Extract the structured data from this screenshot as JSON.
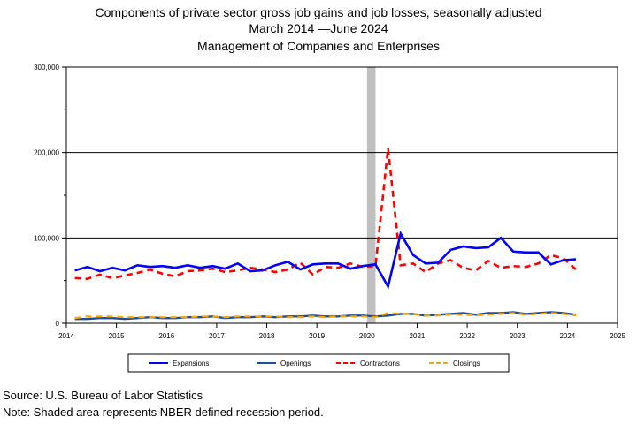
{
  "title": "Components of private sector gross job gains and job losses, seasonally adjusted",
  "subtitle_start": "March 2014",
  "subtitle_end": "June 2024",
  "subtitle2": "Management of Companies and Enterprises",
  "source": "Source: U.S. Bureau of Labor Statistics",
  "note": "Note: Shaded area represents NBER defined recession period.",
  "colors": {
    "expansions": "#0000ff",
    "openings": "#1f4e99",
    "contractions": "#ff0000",
    "closings": "#ffa500",
    "recession": "#c0c0c0"
  },
  "chart_data": {
    "type": "line",
    "xlim": [
      2014,
      2025
    ],
    "ylim": [
      0,
      300000
    ],
    "x_ticks": [
      "2014",
      "2015",
      "2016",
      "2017",
      "2018",
      "2019",
      "2020",
      "2021",
      "2022",
      "2023",
      "2024",
      "2025"
    ],
    "y_ticks": [
      "0",
      "100,000",
      "200,000",
      "300,000"
    ],
    "recession": [
      2020.0,
      2020.17
    ],
    "legend_position": "bottom",
    "x": [
      2014.17,
      2014.42,
      2014.67,
      2014.92,
      2015.17,
      2015.42,
      2015.67,
      2015.92,
      2016.17,
      2016.42,
      2016.67,
      2016.92,
      2017.17,
      2017.42,
      2017.67,
      2017.92,
      2018.17,
      2018.42,
      2018.67,
      2018.92,
      2019.17,
      2019.42,
      2019.67,
      2019.92,
      2020.17,
      2020.42,
      2020.67,
      2020.92,
      2021.17,
      2021.42,
      2021.67,
      2021.92,
      2022.17,
      2022.42,
      2022.67,
      2022.92,
      2023.17,
      2023.42,
      2023.67,
      2023.92,
      2024.17
    ],
    "series": [
      {
        "name": "Expansions",
        "style": "solid-thick",
        "values": [
          62000,
          66000,
          61000,
          65000,
          62000,
          68000,
          66000,
          67000,
          65000,
          68000,
          65000,
          67000,
          64000,
          70000,
          61000,
          62000,
          68000,
          72000,
          63000,
          69000,
          70000,
          70000,
          64000,
          67000,
          69000,
          43000,
          105000,
          80000,
          70000,
          71000,
          86000,
          90000,
          88000,
          89000,
          100000,
          84000,
          83000,
          83000,
          69000,
          74000,
          75000
        ]
      },
      {
        "name": "Openings",
        "style": "solid-thin",
        "values": [
          5000,
          5000,
          6000,
          6000,
          5000,
          6000,
          7000,
          6000,
          6000,
          7000,
          7000,
          8000,
          6000,
          7000,
          7000,
          8000,
          7000,
          8000,
          8000,
          9000,
          8000,
          8000,
          9000,
          9000,
          8000,
          9000,
          11000,
          11000,
          9000,
          10000,
          11000,
          12000,
          10000,
          12000,
          12000,
          13000,
          11000,
          12000,
          13000,
          12000,
          10000
        ]
      },
      {
        "name": "Contractions",
        "style": "dashed-thick",
        "values": [
          53000,
          52000,
          57000,
          53000,
          56000,
          59000,
          63000,
          58000,
          55000,
          61000,
          62000,
          64000,
          60000,
          62000,
          65000,
          63000,
          60000,
          63000,
          71000,
          57000,
          66000,
          65000,
          70000,
          66000,
          67000,
          205000,
          68000,
          70000,
          60000,
          70000,
          74000,
          65000,
          62000,
          73000,
          65000,
          67000,
          66000,
          70000,
          80000,
          76000,
          63000
        ]
      },
      {
        "name": "Closings",
        "style": "dashed-thin",
        "values": [
          6000,
          8000,
          8000,
          8000,
          7000,
          7000,
          7000,
          7000,
          7000,
          7000,
          8000,
          8000,
          7000,
          8000,
          8000,
          8000,
          8000,
          7000,
          7000,
          8000,
          7000,
          8000,
          8000,
          8000,
          7000,
          12000,
          11000,
          11000,
          9000,
          9000,
          10000,
          10000,
          9000,
          10000,
          11000,
          12000,
          10000,
          11000,
          12000,
          11000,
          9000
        ]
      }
    ]
  }
}
